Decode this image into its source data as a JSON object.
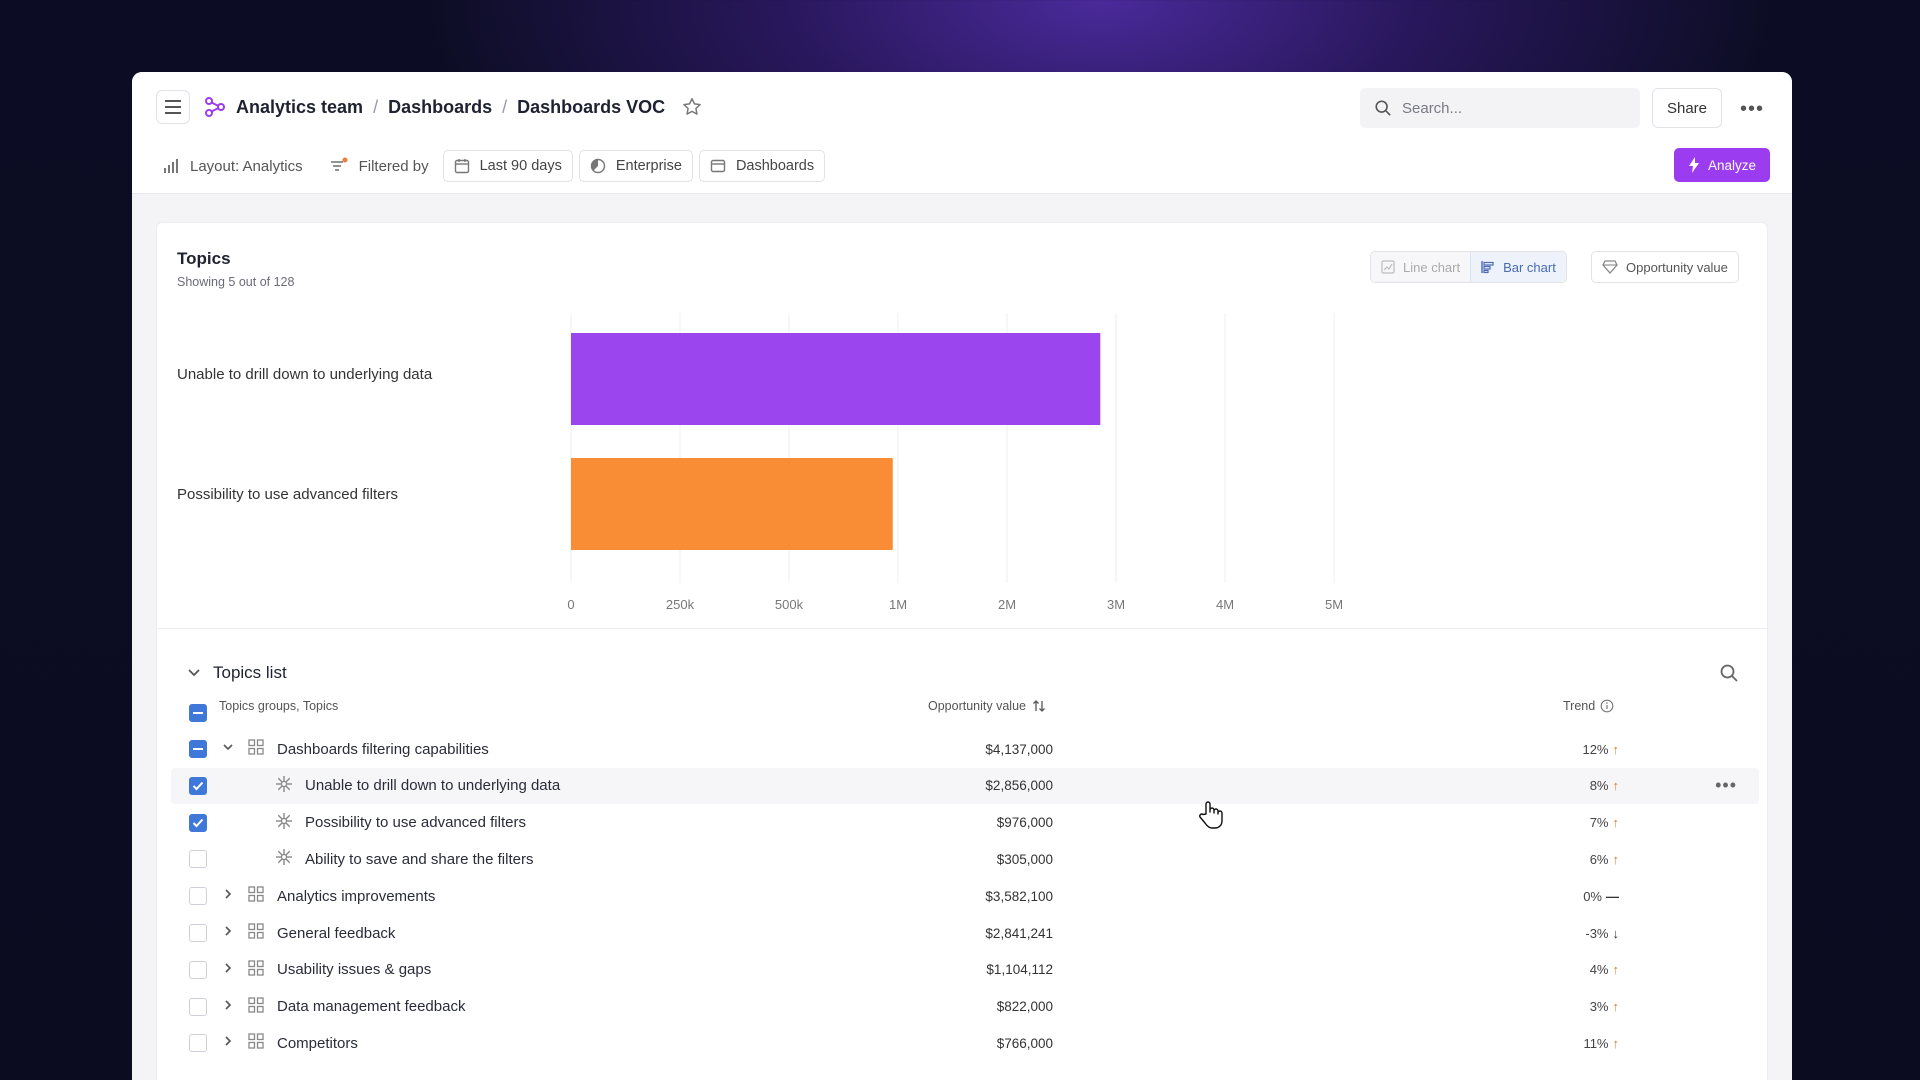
{
  "header": {
    "breadcrumbs": [
      "Analytics team",
      "Dashboards",
      "Dashboards VOC"
    ],
    "search_placeholder": "Search...",
    "share_label": "Share",
    "more_label": "•••"
  },
  "toolbar": {
    "layout_label": "Layout: Analytics",
    "filtered_label": "Filtered by",
    "chips": [
      "Last 90 days",
      "Enterprise",
      "Dashboards"
    ],
    "analyze_label": "Analyze",
    "accent_color": "#9b3cf0"
  },
  "topics": {
    "title": "Topics",
    "subtitle": "Showing 5 out of 128",
    "view_buttons": [
      "Line chart",
      "Bar chart"
    ],
    "active_view": "Bar chart",
    "metric_button": "Opportunity value"
  },
  "chart_data": {
    "type": "bar",
    "orientation": "horizontal",
    "categories": [
      "Unable to drill down to underlying data",
      "Possibility to use advanced filters"
    ],
    "values": [
      2856000,
      976000
    ],
    "colors": [
      "#9b45ef",
      "#f88d35"
    ],
    "x_ticks": [
      "0",
      "250k",
      "500k",
      "1M",
      "2M",
      "3M",
      "4M",
      "5M"
    ],
    "x_tick_values": [
      0,
      250000,
      500000,
      1000000,
      2000000,
      3000000,
      4000000,
      5000000
    ],
    "grid": true
  },
  "list": {
    "title": "Topics list",
    "col_name": "Topics groups, Topics",
    "col_value": "Opportunity value",
    "col_trend": "Trend",
    "rows": [
      {
        "name": "Dashboards filtering capabilities",
        "value": "$4,137,000",
        "trend": "12%",
        "dir": "up",
        "level": 0,
        "state": "partial",
        "expanded": true
      },
      {
        "name": "Unable to drill down to underlying data",
        "value": "$2,856,000",
        "trend": "8%",
        "dir": "up",
        "level": 1,
        "state": "checked"
      },
      {
        "name": "Possibility to use advanced filters",
        "value": "$976,000",
        "trend": "7%",
        "dir": "up",
        "level": 1,
        "state": "checked"
      },
      {
        "name": "Ability to save and share the filters",
        "value": "$305,000",
        "trend": "6%",
        "dir": "up",
        "level": 1,
        "state": "unchecked"
      },
      {
        "name": "Analytics improvements",
        "value": "$3,582,100",
        "trend": "0%",
        "dir": "flat",
        "level": 0,
        "state": "unchecked"
      },
      {
        "name": "General feedback",
        "value": "$2,841,241",
        "trend": "-3%",
        "dir": "down",
        "level": 0,
        "state": "unchecked"
      },
      {
        "name": "Usability issues & gaps",
        "value": "$1,104,112",
        "trend": "4%",
        "dir": "up",
        "level": 0,
        "state": "unchecked"
      },
      {
        "name": "Data management feedback",
        "value": "$822,000",
        "trend": "3%",
        "dir": "up",
        "level": 0,
        "state": "unchecked"
      },
      {
        "name": "Competitors",
        "value": "$766,000",
        "trend": "11%",
        "dir": "up",
        "level": 0,
        "state": "unchecked"
      }
    ],
    "row_more_label": "•••"
  }
}
